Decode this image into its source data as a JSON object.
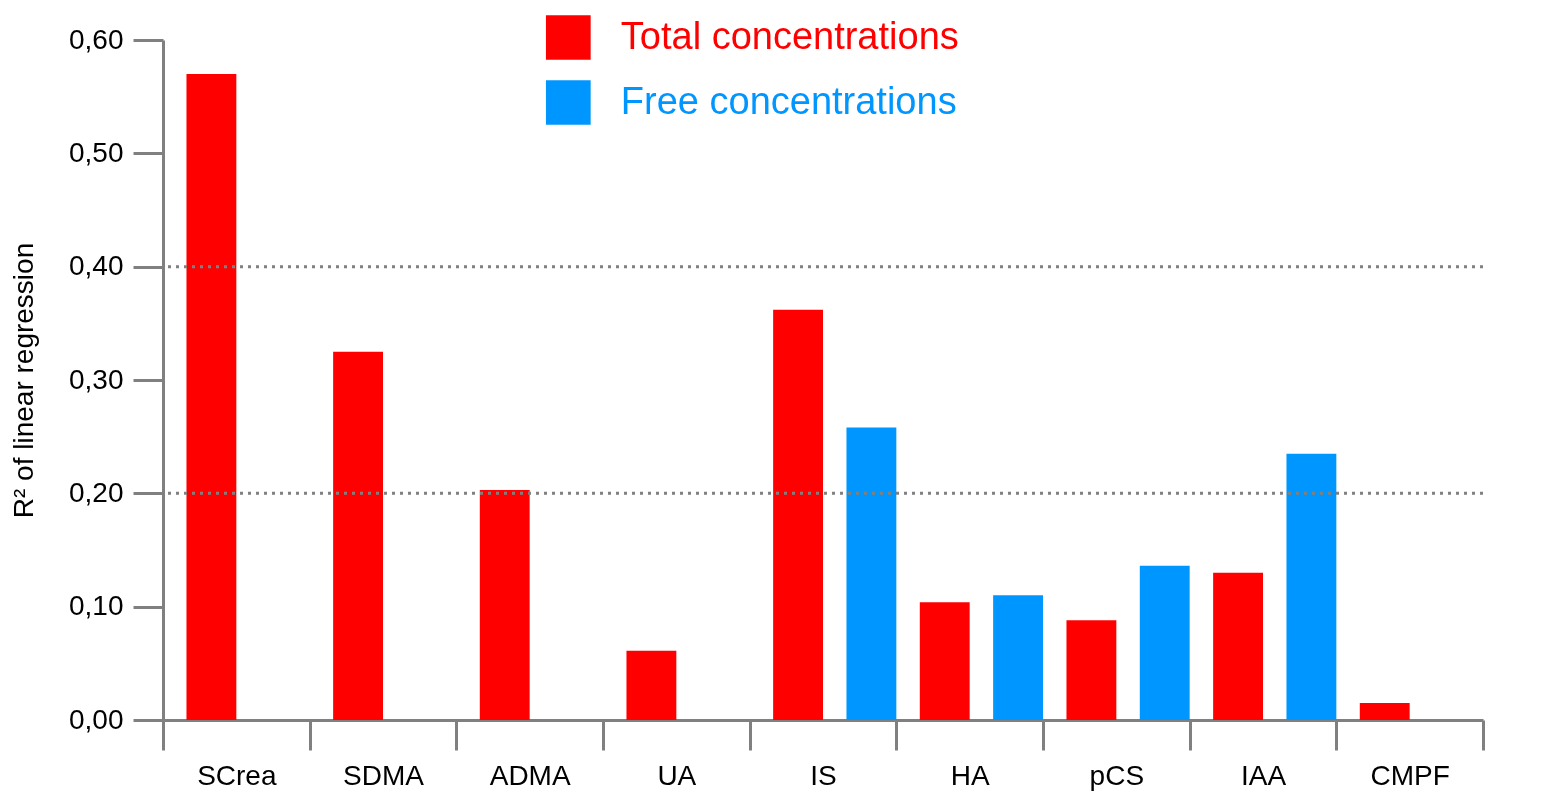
{
  "chart_data": {
    "type": "bar",
    "ylabel": "R² of linear regression",
    "categories": [
      "SCrea",
      "SDMA",
      "ADMA",
      "UA",
      "IS",
      "HA",
      "pCS",
      "IAA",
      "CMPF"
    ],
    "series": [
      {
        "name": "Total concentrations",
        "color": "#ff0000",
        "values": [
          0.57,
          0.325,
          0.203,
          0.061,
          0.362,
          0.104,
          0.088,
          0.13,
          0.015
        ]
      },
      {
        "name": "Free concentrations",
        "color": "#0096ff",
        "values": [
          null,
          null,
          null,
          null,
          0.258,
          0.11,
          0.136,
          0.235,
          null
        ]
      }
    ],
    "ylim": [
      0,
      0.6
    ],
    "yticks": [
      {
        "value": 0,
        "label": "0,00"
      },
      {
        "value": 0.1,
        "label": "0,10"
      },
      {
        "value": 0.2,
        "label": "0,20"
      },
      {
        "value": 0.3,
        "label": "0,30"
      },
      {
        "value": 0.4,
        "label": "0,40"
      },
      {
        "value": 0.5,
        "label": "0,50"
      },
      {
        "value": 0.6,
        "label": "0,60"
      }
    ],
    "ref_lines": [
      {
        "axis": "y",
        "value": 0.2,
        "color": "#808080",
        "line_style": "dotted"
      },
      {
        "axis": "y",
        "value": 0.4,
        "color": "#808080",
        "line_style": "dotted"
      }
    ],
    "legend": "top"
  }
}
